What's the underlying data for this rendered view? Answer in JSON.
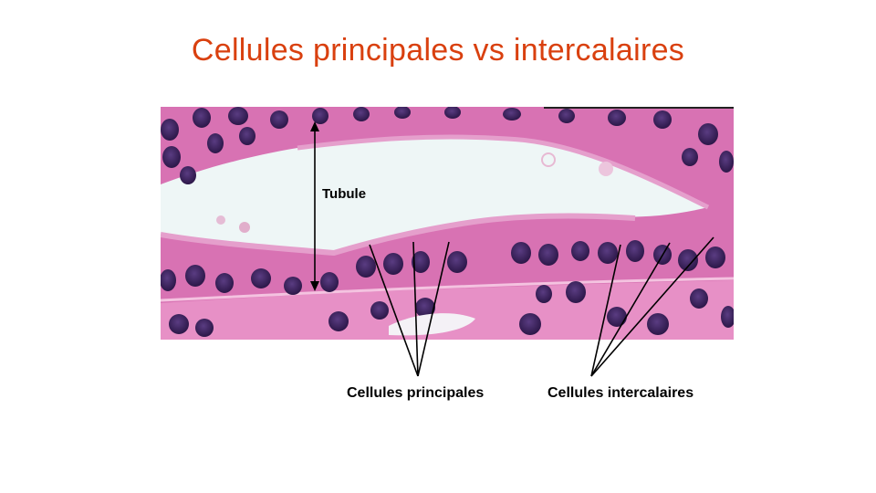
{
  "slide": {
    "title": "Cellules principales vs intercalaires",
    "labels": {
      "tubule": "Tubule",
      "principal_cells": "Cellules principales",
      "intercalated_cells": "Cellules intercalaires"
    },
    "colors": {
      "title": "#d9400f",
      "tissue_pink": "#e27fb8",
      "nucleus_purple": "#3b1f5e",
      "lumen": "#eef6f6"
    }
  }
}
